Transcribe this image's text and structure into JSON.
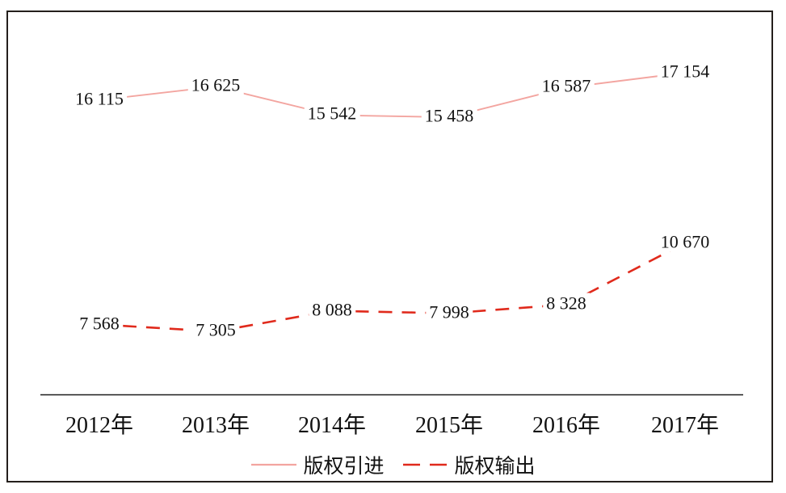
{
  "chart_data": {
    "type": "line",
    "title": "",
    "xlabel": "",
    "ylabel": "",
    "grid": false,
    "x_axis_visible": true,
    "y_axis_visible": false,
    "legend_position": "bottom-center",
    "categories": [
      "2012年",
      "2013年",
      "2014年",
      "2015年",
      "2016年",
      "2017年"
    ],
    "series": [
      {
        "name": "版权引进",
        "line_style": "solid",
        "color": "#f3a5a0",
        "values": [
          16115,
          16625,
          15542,
          15458,
          16587,
          17154
        ],
        "labels": [
          "16 115",
          "16 625",
          "15 542",
          "15 458",
          "16 587",
          "17 154"
        ]
      },
      {
        "name": "版权输出",
        "line_style": "dashed",
        "color": "#e02a1c",
        "values": [
          7568,
          7305,
          8088,
          7998,
          8328,
          10670
        ],
        "labels": [
          "7 568",
          "7 305",
          "8 088",
          "7 998",
          "8 328",
          "10 670"
        ]
      }
    ],
    "colors": {
      "border": "#241f1c",
      "axis": "#1a1a1a",
      "text": "#111111"
    }
  }
}
